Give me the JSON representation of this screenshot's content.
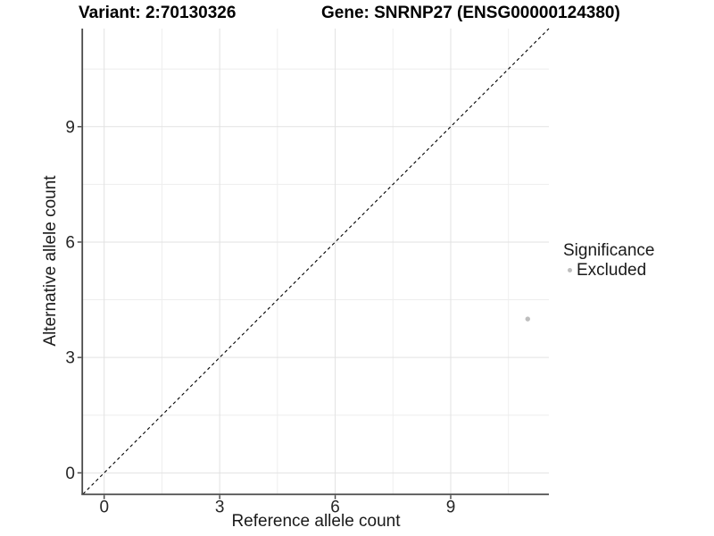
{
  "figure": {
    "titles": {
      "variant": "Variant: 2:70130326",
      "gene": "Gene: SNRNP27 (ENSG00000124380)"
    }
  },
  "chart_data": {
    "type": "scatter",
    "title": "Variant: 2:70130326   Gene: SNRNP27 (ENSG00000124380)",
    "xlabel": "Reference allele count",
    "ylabel": "Alternative allele count",
    "xlim": [
      -0.55,
      11.55
    ],
    "ylim": [
      -0.55,
      11.55
    ],
    "x_ticks": [
      0,
      3,
      6,
      9
    ],
    "y_ticks": [
      0,
      3,
      6,
      9
    ],
    "x_minor_ticks": [
      1.5,
      4.5,
      7.5,
      10.5
    ],
    "y_minor_ticks": [
      1.5,
      4.5,
      7.5,
      10.5
    ],
    "grid": true,
    "reference_line": {
      "slope": 1,
      "intercept": 0,
      "style": "dashed"
    },
    "series": [
      {
        "name": "Excluded",
        "color": "#bebebe",
        "points": [
          {
            "x": 11,
            "y": 4
          }
        ]
      }
    ],
    "legend": {
      "title": "Significance",
      "position": "right",
      "items": [
        {
          "label": "Excluded",
          "color": "#bebebe"
        }
      ]
    }
  },
  "colors": {
    "background": "#ffffff",
    "axis_line": "#4a4a4a",
    "tick_mark": "#454545",
    "grid_major": "#e2e2e2",
    "grid_minor": "#eeeeee",
    "tick_label": "#262626",
    "reference_line": "#000000",
    "point": "#bebebe"
  }
}
